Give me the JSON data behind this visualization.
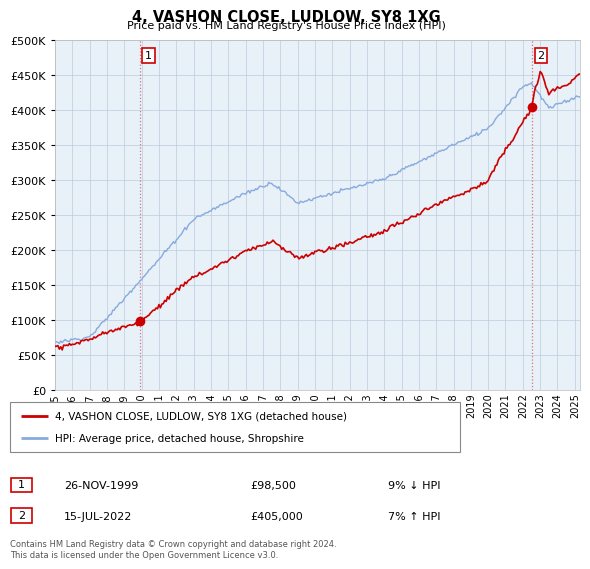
{
  "title": "4, VASHON CLOSE, LUDLOW, SY8 1XG",
  "subtitle": "Price paid vs. HM Land Registry's House Price Index (HPI)",
  "legend_entry1": "4, VASHON CLOSE, LUDLOW, SY8 1XG (detached house)",
  "legend_entry2": "HPI: Average price, detached house, Shropshire",
  "table_row1_date": "26-NOV-1999",
  "table_row1_price": "£98,500",
  "table_row1_hpi": "9% ↓ HPI",
  "table_row2_date": "15-JUL-2022",
  "table_row2_price": "£405,000",
  "table_row2_hpi": "7% ↑ HPI",
  "footer": "Contains HM Land Registry data © Crown copyright and database right 2024.\nThis data is licensed under the Open Government Licence v3.0.",
  "color_house": "#cc0000",
  "color_hpi": "#88aadd",
  "color_bg": "#e8f0f8",
  "ylim": [
    0,
    500000
  ],
  "yticks": [
    0,
    50000,
    100000,
    150000,
    200000,
    250000,
    300000,
    350000,
    400000,
    450000,
    500000
  ],
  "xlim_start": 1995.0,
  "xlim_end": 2025.3,
  "sale1_year": 1999.9,
  "sale1_price": 98500,
  "sale2_year": 2022.54,
  "sale2_price": 405000
}
